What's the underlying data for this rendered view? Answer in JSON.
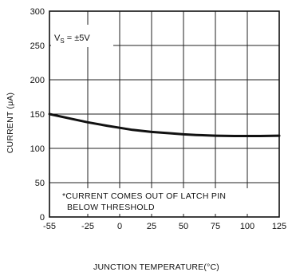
{
  "chart_data": {
    "type": "line",
    "xlabel": "JUNCTION TEMPERATURE(°C)",
    "ylabel": "CURRENT (μA)",
    "xlim": [
      -55,
      125
    ],
    "ylim": [
      0,
      300
    ],
    "x_ticks": [
      "-55",
      "-25",
      "0",
      "25",
      "50",
      "75",
      "100",
      "125"
    ],
    "y_ticks": [
      "0",
      "50",
      "100",
      "150",
      "200",
      "250",
      "300"
    ],
    "grid": true,
    "condition": {
      "main": "V",
      "sub": "S",
      "rest": " = ±5V"
    },
    "annotation": {
      "line1": "*CURRENT COMES OUT OF LATCH PIN",
      "line2": "BELOW THRESHOLD"
    },
    "series": [
      {
        "x": [
          -55,
          -40,
          -25,
          -10,
          0,
          10,
          25,
          40,
          50,
          60,
          75,
          90,
          100,
          110,
          125
        ],
        "values": [
          150,
          144,
          138,
          133,
          130,
          127,
          124,
          122,
          120.5,
          119.5,
          118.5,
          118,
          118,
          118,
          118.5
        ]
      }
    ]
  }
}
